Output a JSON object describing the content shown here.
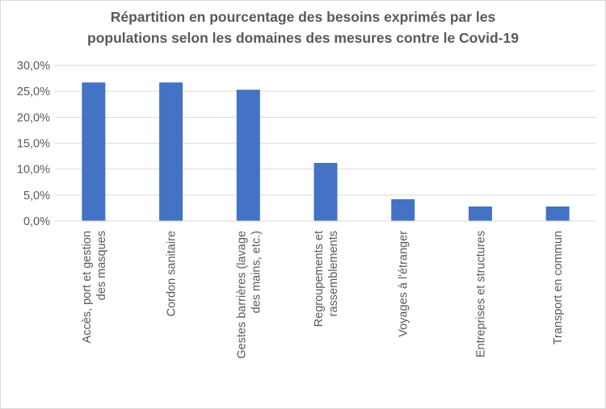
{
  "chart_data": {
    "type": "bar",
    "title_lines": [
      "Répartition en pourcentage des besoins exprimés par les",
      "populations selon les domaines des mesures contre le Covid-19"
    ],
    "categories": [
      [
        "Accès, port et gestion",
        "des masques"
      ],
      [
        "Cordon sanitaire"
      ],
      [
        "Gestes barrières (lavage",
        "des mains, etc.)"
      ],
      [
        "Regroupements et",
        "rassemblements"
      ],
      [
        "Voyages à l'étranger"
      ],
      [
        "Entreprises et structures"
      ],
      [
        "Transport en commun"
      ]
    ],
    "values": [
      26.7,
      26.7,
      25.3,
      11.2,
      4.2,
      2.8,
      2.8
    ],
    "ylim": [
      0,
      30
    ],
    "yticks": [
      {
        "value": 0,
        "label": "0,0%"
      },
      {
        "value": 5,
        "label": "5,0%"
      },
      {
        "value": 10,
        "label": "10,0%"
      },
      {
        "value": 15,
        "label": "15,0%"
      },
      {
        "value": 20,
        "label": "20,0%"
      },
      {
        "value": 25,
        "label": "25,0%"
      },
      {
        "value": 30,
        "label": "30,0%"
      }
    ],
    "grid": true,
    "legend": "none",
    "colors": {
      "bar": "#4472c4",
      "grid": "#d9d9d9",
      "text": "#595959"
    }
  }
}
